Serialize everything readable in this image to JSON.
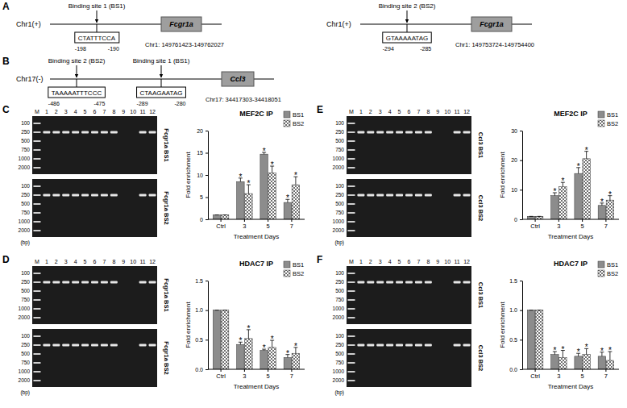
{
  "panel_labels": [
    "A",
    "B",
    "C",
    "D",
    "E",
    "F"
  ],
  "diagrams": [
    {
      "chromosome": "Chr1(+)",
      "gene": "Fcgr1a",
      "coordinates": "Chr1: 149761423-149762027",
      "sites": [
        {
          "label": "Binding site 1 (BS1)",
          "sequence": "CTATTTCCA",
          "start": -198,
          "end": -190
        }
      ]
    },
    {
      "chromosome": "Chr1(+)",
      "gene": "Fcgr1a",
      "coordinates": "Chr1: 149753724-149754400",
      "sites": [
        {
          "label": "Binding site 2 (BS2)",
          "sequence": "GTAAAAATAG",
          "start": -294,
          "end": -285
        }
      ]
    },
    {
      "chromosome": "Chr17(-)",
      "gene": "Ccl3",
      "coordinates": "Chr17: 34417303-34418051",
      "sites": [
        {
          "label": "Binding site 2 (BS2)",
          "sequence": "TAAAAATTTCCC",
          "start": -486,
          "end": -475
        },
        {
          "label": "Binding site 1 (BS1)",
          "sequence": "CTAAGAATAG",
          "start": -289,
          "end": -280
        }
      ]
    }
  ],
  "gels": [
    {
      "lanes": [
        "M",
        "1",
        "2",
        "3",
        "4",
        "5",
        "6",
        "7",
        "8",
        "9",
        "10",
        "11",
        "12"
      ],
      "markers": [
        100,
        250,
        500,
        750,
        1000,
        2000
      ],
      "marker_unit": "(bp)",
      "blots": [
        {
          "label": "Fcgr1a BS1",
          "bands": [
            true,
            true,
            true,
            true,
            true,
            true,
            true,
            true,
            false,
            false,
            true,
            true
          ]
        },
        {
          "label": "Fcgr1a BS2",
          "bands": [
            true,
            true,
            true,
            true,
            true,
            true,
            true,
            true,
            false,
            false,
            true,
            true
          ]
        }
      ]
    },
    {
      "lanes": [
        "M",
        "1",
        "2",
        "3",
        "4",
        "5",
        "6",
        "7",
        "8",
        "9",
        "10",
        "11",
        "12"
      ],
      "markers": [
        100,
        250,
        500,
        750,
        1000,
        2000
      ],
      "marker_unit": "(bp)",
      "blots": [
        {
          "label": "Fcgr1a BS1",
          "bands": [
            true,
            true,
            true,
            true,
            true,
            true,
            true,
            true,
            false,
            false,
            true,
            true
          ]
        },
        {
          "label": "Fcgr1a BS2",
          "bands": [
            true,
            true,
            true,
            true,
            true,
            true,
            true,
            true,
            false,
            false,
            true,
            true
          ]
        }
      ]
    },
    {
      "lanes": [
        "M",
        "1",
        "2",
        "3",
        "4",
        "5",
        "6",
        "7",
        "8",
        "9",
        "10",
        "11",
        "12"
      ],
      "markers": [
        100,
        250,
        500,
        750,
        1000,
        2000
      ],
      "marker_unit": "(bp)",
      "blots": [
        {
          "label": "Ccl3 BS1",
          "bands": [
            true,
            true,
            true,
            true,
            true,
            true,
            true,
            true,
            false,
            false,
            true,
            true
          ]
        },
        {
          "label": "Ccl3 BS2",
          "bands": [
            true,
            true,
            true,
            true,
            true,
            true,
            true,
            true,
            false,
            false,
            true,
            true
          ]
        }
      ]
    },
    {
      "lanes": [
        "M",
        "1",
        "2",
        "3",
        "4",
        "5",
        "6",
        "7",
        "8",
        "9",
        "10",
        "11",
        "12"
      ],
      "markers": [
        100,
        250,
        500,
        750,
        1000,
        2000
      ],
      "marker_unit": "(bp)",
      "blots": [
        {
          "label": "Ccl3 BS1",
          "bands": [
            true,
            true,
            true,
            true,
            true,
            true,
            true,
            true,
            false,
            false,
            true,
            true
          ]
        },
        {
          "label": "Ccl3 BS2",
          "bands": [
            true,
            true,
            true,
            true,
            true,
            true,
            true,
            true,
            false,
            false,
            true,
            true
          ]
        }
      ]
    }
  ],
  "chart_data": [
    {
      "type": "bar",
      "title": "MEF2C IP",
      "x_label": "Treatment Days",
      "y_label": "Fold enrichment",
      "categories": [
        "Ctrl",
        "3",
        "5",
        "7"
      ],
      "series": [
        {
          "name": "BS1",
          "color": "#8c8c8c",
          "values": [
            1,
            8.5,
            14.7,
            3.8
          ],
          "errors": [
            0,
            0.8,
            0.4,
            0.7
          ],
          "annotations": [
            null,
            "*",
            "*",
            "*"
          ]
        },
        {
          "name": "BS2",
          "color": "#707070",
          "values": [
            1,
            5.8,
            10.5,
            7.8
          ],
          "errors": [
            0,
            2,
            1.5,
            1.8
          ],
          "annotations": [
            null,
            "*",
            "*",
            "*"
          ]
        }
      ],
      "ylim": [
        0,
        20
      ],
      "yticks": [
        0,
        5,
        10,
        15,
        20
      ],
      "legend": "top-right",
      "grid": false
    },
    {
      "type": "bar",
      "title": "HDAC7 IP",
      "x_label": "Treatment Days",
      "y_label": "Fold enrichment",
      "categories": [
        "Ctrl",
        "3",
        "5",
        "7"
      ],
      "series": [
        {
          "name": "BS1",
          "color": "#8c8c8c",
          "values": [
            1,
            0.42,
            0.32,
            0.2
          ],
          "errors": [
            0,
            0.04,
            0.02,
            0.05
          ],
          "annotations": [
            null,
            "*",
            "*",
            "*"
          ]
        },
        {
          "name": "BS2",
          "color": "#707070",
          "values": [
            1,
            0.52,
            0.37,
            0.27
          ],
          "errors": [
            0,
            0.15,
            0.12,
            0.1
          ],
          "annotations": [
            null,
            "*",
            "*",
            "*"
          ]
        }
      ],
      "ylim": [
        0,
        1.5
      ],
      "yticks": [
        {
          "value": 0,
          "label": "0.0"
        },
        0.5,
        {
          "value": 1,
          "label": "1.0"
        },
        1.5
      ],
      "legend": "top-right",
      "grid": false
    },
    {
      "type": "bar",
      "title": "MEF2C IP",
      "x_label": "Treatment Days",
      "y_label": "Fold enrichment",
      "categories": [
        "Ctrl",
        "3",
        "5",
        "7"
      ],
      "series": [
        {
          "name": "BS1",
          "color": "#8c8c8c",
          "values": [
            1,
            8,
            15.5,
            4.7
          ],
          "errors": [
            0,
            1,
            2,
            0.8
          ],
          "annotations": [
            null,
            "*",
            "*",
            "*"
          ]
        },
        {
          "name": "BS2",
          "color": "#707070",
          "values": [
            1,
            11,
            20.5,
            6.5
          ],
          "errors": [
            0,
            1.5,
            2.5,
            1.5
          ],
          "annotations": [
            null,
            "*",
            "*",
            "*"
          ]
        }
      ],
      "ylim": [
        0,
        30
      ],
      "yticks": [
        0,
        10,
        20,
        30
      ],
      "legend": "top-right",
      "grid": false
    },
    {
      "type": "bar",
      "title": "HDAC7 IP",
      "x_label": "Treatment Days",
      "y_label": "Fold enrichment",
      "categories": [
        "Ctrl",
        "3",
        "5",
        "7"
      ],
      "series": [
        {
          "name": "BS1",
          "color": "#8c8c8c",
          "values": [
            1,
            0.25,
            0.22,
            0.22
          ],
          "errors": [
            0,
            0.05,
            0.05,
            0.07
          ],
          "annotations": [
            null,
            "*",
            "*",
            "*"
          ]
        },
        {
          "name": "BS2",
          "color": "#707070",
          "values": [
            1,
            0.2,
            0.25,
            0.15
          ],
          "errors": [
            0,
            0.12,
            0.1,
            0.15
          ],
          "annotations": [
            null,
            "*",
            "*",
            "*"
          ]
        }
      ],
      "ylim": [
        0,
        1.5
      ],
      "yticks": [
        {
          "value": 0,
          "label": "0.0"
        },
        0.5,
        {
          "value": 1,
          "label": "1.0"
        },
        1.5
      ],
      "legend": "top-right",
      "grid": false
    }
  ]
}
